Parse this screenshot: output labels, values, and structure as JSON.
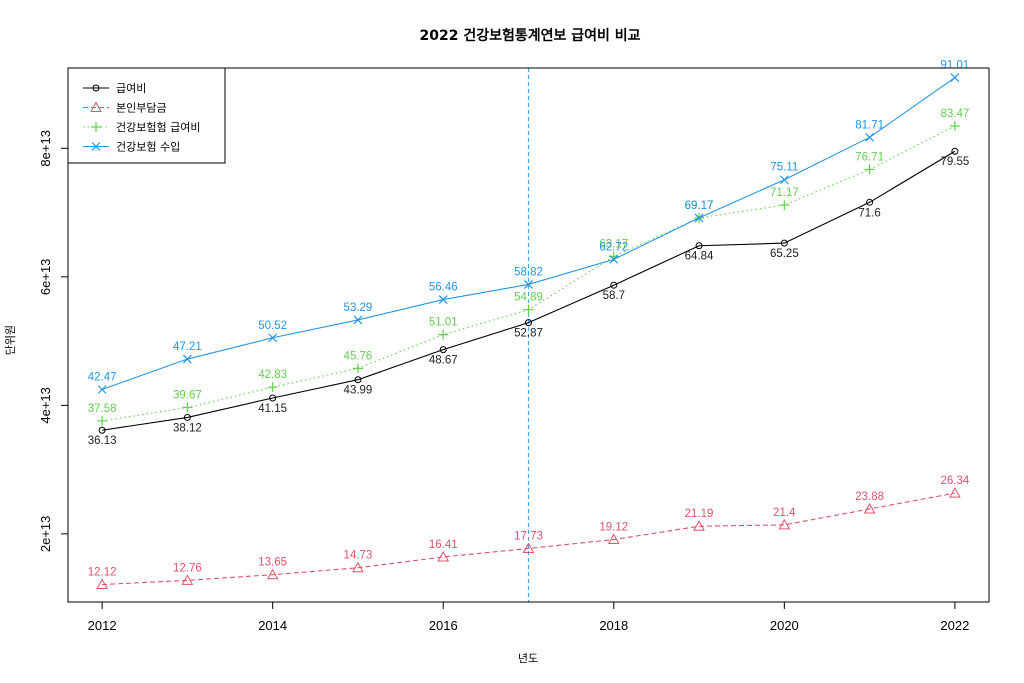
{
  "chart_data": {
    "type": "line",
    "title": "2022 건강보험통계연보 급여비 비교",
    "xlabel": "년도",
    "ylabel": "단위원",
    "x": [
      2012,
      2013,
      2014,
      2015,
      2016,
      2017,
      2018,
      2019,
      2020,
      2021,
      2022
    ],
    "x_ticks": [
      2012,
      2014,
      2016,
      2018,
      2020,
      2022
    ],
    "y_ticks": [
      20000000000000.0,
      40000000000000.0,
      60000000000000.0,
      80000000000000.0
    ],
    "y_tick_labels": [
      "2e+13",
      "4e+13",
      "6e+13",
      "8e+13"
    ],
    "xlim": [
      2011.6,
      2022.4
    ],
    "ylim": [
      9400000000000.0,
      92500000000000.0
    ],
    "grid": false,
    "legend_position": "top-left",
    "vline": {
      "x": 2017,
      "color": "#3fa9f5"
    },
    "series": [
      {
        "name": "급여비",
        "color": "#000000",
        "dash": "",
        "marker": "circle",
        "values": [
          36130000000000.0,
          38120000000000.0,
          41150000000000.0,
          43990000000000.0,
          48670000000000.0,
          52870000000000.0,
          58700000000000.0,
          64840000000000.0,
          65250000000000.0,
          71600000000000.0,
          79550000000000.0
        ],
        "labels": [
          "36.13",
          "38.12",
          "41.15",
          "43.99",
          "48.67",
          "52.87",
          "58.7",
          "64.84",
          "65.25",
          "71.6",
          "79.55"
        ]
      },
      {
        "name": "본인부담금",
        "color": "#df536b",
        "dash": "5,3",
        "marker": "triangle",
        "values": [
          12120000000000.0,
          12760000000000.0,
          13650000000000.0,
          14730000000000.0,
          16410000000000.0,
          17730000000000.0,
          19120000000000.0,
          21190000000000.0,
          21400000000000.0,
          23880000000000.0,
          26340000000000.0
        ],
        "labels": [
          "12.12",
          "12.76",
          "13.65",
          "14.73",
          "16.41",
          "17.73",
          "19.12",
          "21.19",
          "21.4",
          "23.88",
          "26.34"
        ]
      },
      {
        "name": "건강보험험 급여비",
        "color": "#61d04f",
        "dash": "1.5,3",
        "marker": "plus",
        "values": [
          37580000000000.0,
          39670000000000.0,
          42830000000000.0,
          45760000000000.0,
          51010000000000.0,
          54890000000000.0,
          63170000000000.0,
          69170000000000.0,
          71170000000000.0,
          76710000000000.0,
          83470000000000.0
        ],
        "labels": [
          "37.58",
          "39.67",
          "42.83",
          "45.76",
          "51.01",
          "54.89",
          "63.17",
          "69.17",
          "71.17",
          "76.71",
          "83.47"
        ]
      },
      {
        "name": "건강보험 수입",
        "color": "#2297e6",
        "dash": "",
        "marker": "cross",
        "values": [
          42470000000000.0,
          47210000000000.0,
          50520000000000.0,
          53290000000000.0,
          56460000000000.0,
          58820000000000.0,
          62720000000000.0,
          69170000000000.0,
          75110000000000.0,
          81710000000000.0,
          91010000000000.0
        ],
        "labels": [
          "42.47",
          "47.21",
          "50.52",
          "53.29",
          "56.46",
          "58.82",
          "62.72",
          "69.17",
          "75.11",
          "81.71",
          "91.01"
        ]
      }
    ]
  }
}
